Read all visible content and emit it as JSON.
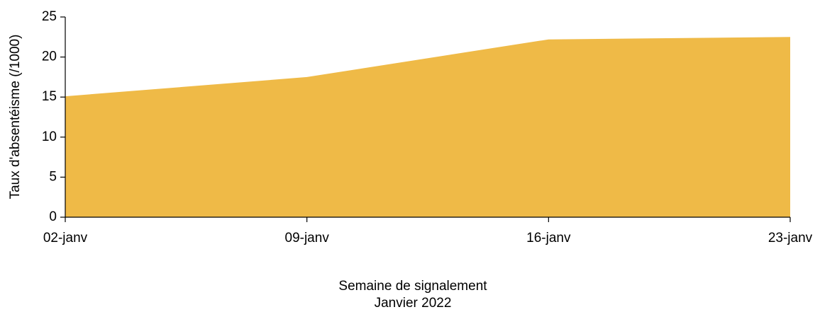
{
  "chart_data": {
    "type": "area",
    "categories": [
      "02-janv",
      "09-janv",
      "16-janv",
      "23-janv"
    ],
    "values": [
      15.1,
      17.5,
      22.2,
      22.5
    ],
    "color": "#efba47",
    "ylim": [
      0,
      25
    ],
    "yticks": [
      0,
      5,
      10,
      15,
      20,
      25
    ],
    "ylabel": "Taux d'absentéisme (/1000)",
    "xlabel": [
      "Semaine de signalement",
      "Janvier 2022"
    ],
    "grid": false
  }
}
